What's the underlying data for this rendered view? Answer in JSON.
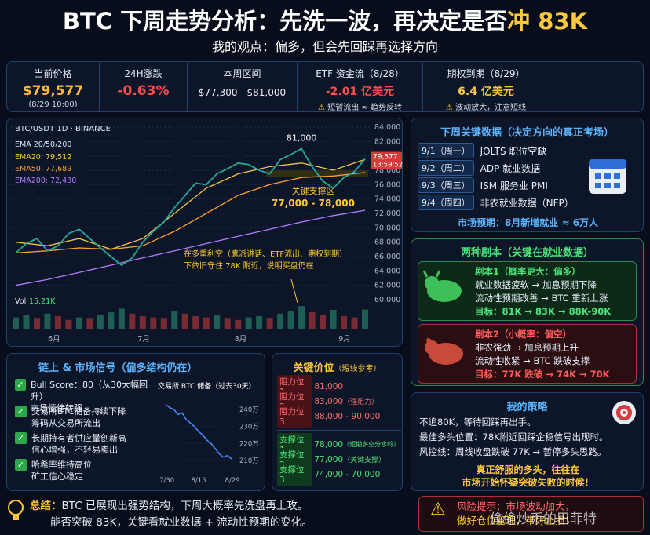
{
  "header": {
    "title": "BTC 下周走势分析：先洗一波，再决定是否",
    "title_highlight": "冲 83K",
    "subtitle": "我的观点：偏多，但会先回踩再选择方向"
  },
  "stats": [
    {
      "label": "当前价格",
      "value": "$79,577",
      "note": "(8/29 10:00)"
    },
    {
      "label": "24H涨跌",
      "value": "-0.63%"
    },
    {
      "label": "本周区间",
      "value": "$77,300 - $81,000"
    },
    {
      "label": "ETF 资金流（8/28）",
      "value": "-2.01 亿美元",
      "note": "短暂流出 ≈ 趋势反转"
    },
    {
      "label": "期权到期（8/29）",
      "value": "6.4 亿美元",
      "note": "波动放大，注意短线"
    }
  ],
  "chart_data": [
    {
      "type": "line",
      "title": "BTC/USDT 1D · BINANCE",
      "ema_title": "EMA 20/50/200",
      "color": "#26a69a",
      "values": [
        66500,
        67800,
        68500,
        66800,
        67500,
        69200,
        69800,
        68500,
        67200,
        66000,
        64800,
        65800,
        68000,
        69500,
        70800,
        72800,
        74500,
        76200,
        76000,
        77500,
        78200,
        79000,
        78800,
        78000,
        77500,
        79500,
        80200,
        81000,
        78500,
        76500,
        75500,
        77000,
        77800,
        79577
      ],
      "series": [
        {
          "name": "EMA20: 79,512",
          "color": "#f5c542",
          "values": [
            68000,
            67500,
            68500,
            67000,
            68500,
            72000,
            75500,
            77500,
            78500,
            79000,
            78000,
            79512
          ]
        },
        {
          "name": "EMA50: 77,689",
          "color": "#ff9f2e",
          "values": [
            66500,
            66800,
            67200,
            67000,
            67500,
            69500,
            72000,
            74500,
            76000,
            77000,
            77200,
            77689
          ]
        },
        {
          "name": "EMA200: 72,430",
          "color": "#b57bff",
          "values": [
            62000,
            62800,
            63800,
            64800,
            65800,
            66800,
            67800,
            68800,
            69800,
            70800,
            71700,
            72430
          ]
        }
      ],
      "x_labels": [
        "6月",
        "7月",
        "8月",
        "9月"
      ],
      "ylim": [
        60000,
        84000
      ],
      "yticks": [
        {
          "value": 84000,
          "label": "84,000"
        },
        {
          "value": 82000,
          "label": "82,000"
        },
        {
          "value": 80000,
          "label": "80,000"
        },
        {
          "value": 78000,
          "label": "78,000"
        },
        {
          "value": 76000,
          "label": "76,000"
        },
        {
          "value": 74000,
          "label": "74,000"
        },
        {
          "value": 72000,
          "label": "72,000"
        },
        {
          "value": 70000,
          "label": "70,000"
        },
        {
          "value": 68000,
          "label": "68,000"
        },
        {
          "value": 66000,
          "label": "66,000"
        },
        {
          "value": 64000,
          "label": "64,000"
        },
        {
          "value": 62000,
          "label": "62,000"
        },
        {
          "value": 60000,
          "label": "60,000"
        }
      ],
      "grid": true,
      "last_price_label": "79,577",
      "last_price_time": "13:59:52",
      "peak_label": "81,000",
      "support_title": "关键支撑区",
      "support_range": "77,000 - 78,000",
      "note": [
        "在多重利空（鹰派讲话、ETF流出、期权到期）",
        "下依旧守住 78K 附近，说明买盘仍在"
      ],
      "volume": {
        "label": "Vol",
        "last_label": "15.21K",
        "color": "#7a2a33",
        "values": [
          9,
          11,
          8,
          12,
          10,
          7,
          9,
          8,
          11,
          13,
          16,
          12,
          10,
          9,
          8,
          14,
          12,
          10,
          9,
          11,
          8,
          7,
          9,
          10,
          8,
          12,
          14,
          18,
          13,
          11,
          15,
          10,
          9,
          15.21
        ]
      }
    },
    {
      "type": "line",
      "title": "交易所 BTC 储备（过去30天）",
      "color": "#4a8cff",
      "values": [
        243,
        241,
        240,
        237,
        238,
        234,
        232,
        230,
        227,
        225,
        222,
        220,
        217,
        214,
        212,
        213,
        211
      ],
      "x_labels": [
        "7/30",
        "8/15",
        "8/29"
      ],
      "ylim": [
        205,
        245
      ],
      "yticks": [
        {
          "value": 240,
          "label": "240万"
        },
        {
          "value": 230,
          "label": "230万"
        },
        {
          "value": 220,
          "label": "220万"
        },
        {
          "value": 210,
          "label": "210万"
        }
      ]
    }
  ],
  "key_data": {
    "title": "下周关键数据（决定方向的真正考场）",
    "rows": [
      [
        "9/1",
        "（周一）",
        "JOLTS 职位空缺"
      ],
      [
        "9/2",
        "（周二）",
        "ADP 就业数据"
      ],
      [
        "9/3",
        "（周三）",
        "ISM 服务业 PMI"
      ],
      [
        "9/4",
        "（周四）",
        "非农就业数据（NFP）"
      ]
    ],
    "expectation": "市场预期：8月新增就业 ≈ 6万人"
  },
  "scenarios": {
    "title": "两种剧本（关键在就业数据）",
    "items": [
      {
        "title": "剧本1（概率更大：偏多）",
        "lines": [
          "就业数据疲软 → 加息预期下降",
          "流动性预期改善 → BTC 重新上涨"
        ],
        "target": "目标：81K → 83K → 88K-90K"
      },
      {
        "title": "剧本2（小概率：偏空）",
        "lines": [
          "非农强劲 → 加息预期上升",
          "流动性收紧 → BTC 跌破支撑"
        ],
        "target": "目标：77K 跌破 → 74K → 70K"
      }
    ]
  },
  "onchain": {
    "title": "链上 & 市场信号（偏多结构仍在）",
    "items": [
      [
        "Bull Score：80（从30大幅回升）",
        "市场情绪转强"
      ],
      [
        "交易所BTC储备持续下降",
        "筹码从交易所流出"
      ],
      [
        "长期持有者供应量创新高",
        "信心增强，不轻易卖出"
      ],
      [
        "哈希率维持高位",
        "矿工信心稳定"
      ]
    ]
  },
  "levels": {
    "title": "关键价位",
    "subtitle": "（短线参考）",
    "resistance": [
      [
        "阻力位1",
        "81,000",
        ""
      ],
      [
        "阻力位2",
        "83,000",
        "（强阻力）"
      ],
      [
        "阻力位3",
        "88,000 - 90,000",
        ""
      ]
    ],
    "support": [
      [
        "支撑位1",
        "78,000",
        "（短期多空分水岭）"
      ],
      [
        "支撑位2",
        "77,000",
        "（关键支撑）"
      ],
      [
        "支撑位3",
        "74,000 - 70,000",
        ""
      ]
    ]
  },
  "strategy": {
    "title": "我的策略",
    "lines": [
      "不追80K，等待回踩再出手。",
      "最佳多头位置：78K附近回踩企稳信号出现时。",
      "风控线：周线收盘跌破 77K → 暂停多头思路。"
    ],
    "highlight": [
      "真正舒服的多头，往往在",
      "市场开始怀疑突破失败的时候！"
    ]
  },
  "footer": {
    "summary_label": "总结：",
    "summary": [
      "BTC 已展现出强势结构，下周大概率先洗盘再上攻。",
      "能否突破 83K，关键看就业数据 + 流动性预期的变化。"
    ],
    "risk": [
      "风险提示：市场波动加大，",
      "做好仓位管理，带好止损！"
    ],
    "watermark": "偷偷炒币的巴菲特"
  }
}
